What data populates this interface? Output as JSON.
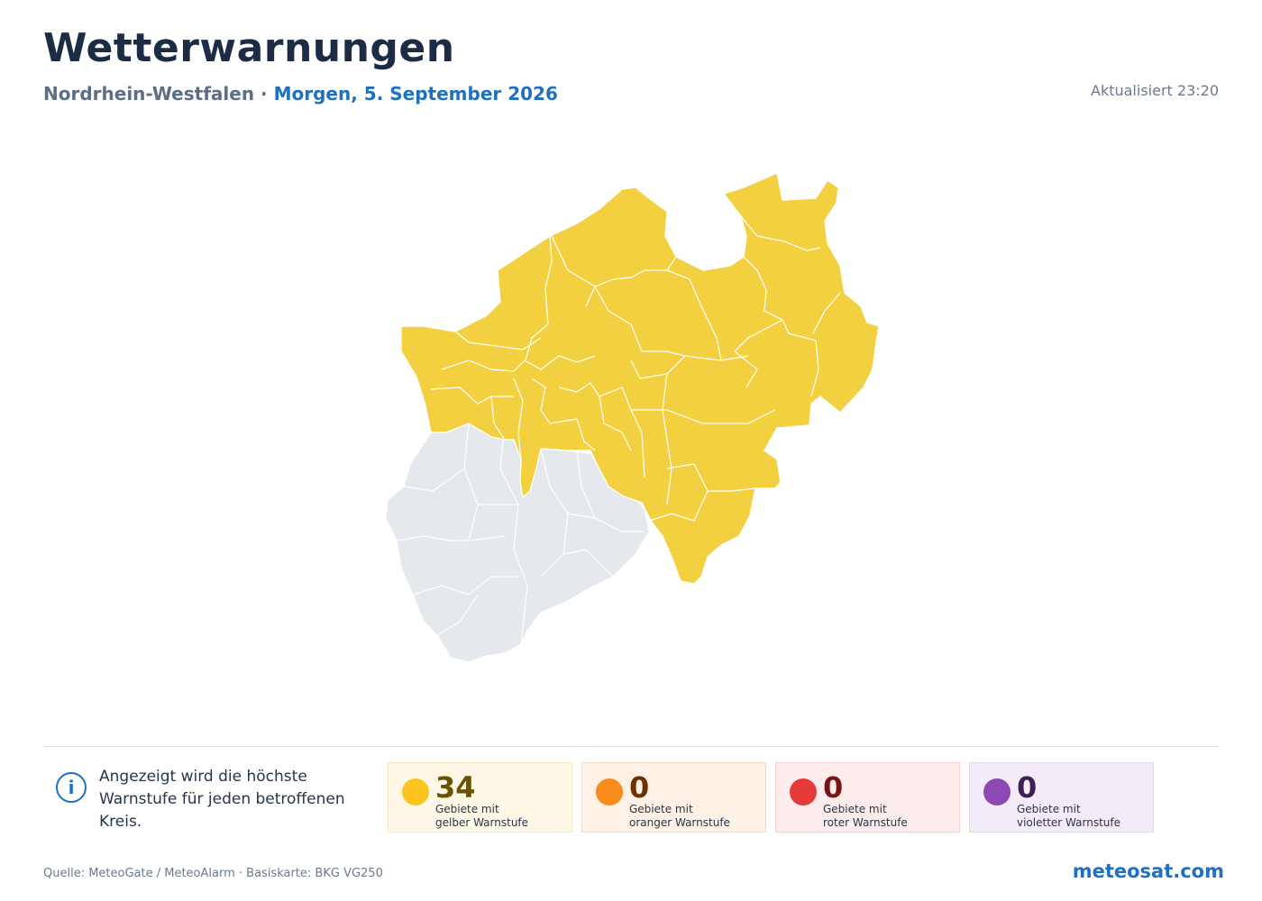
{
  "header": {
    "title": "Wetterwarnungen",
    "region": "Nordrhein-Westfalen",
    "separator": "·",
    "date": "Morgen, 5. September 2026",
    "updated": "Aktualisiert 23:20"
  },
  "map": {
    "colors": {
      "warned": "#f3d040",
      "not_warned": "#e5e8ed",
      "border": "#ffffff"
    },
    "warned_region_level": "gelb"
  },
  "info": {
    "icon": "info-icon",
    "text": "Angezeigt wird die höchste Warnstufe für jeden betroffenen Kreis."
  },
  "legend": [
    {
      "count": "34",
      "label": "Gebiete mit",
      "label2": "gelber Warnstufe",
      "dot": "#fbc41e",
      "num_color": "#6a5200",
      "bg": "#fff8e6",
      "border": "#f4e7c2"
    },
    {
      "count": "0",
      "label": "Gebiete mit",
      "label2": "oranger Warnstufe",
      "dot": "#f98b1c",
      "num_color": "#6e3200",
      "bg": "#fff1e6",
      "border": "#f5dcc8"
    },
    {
      "count": "0",
      "label": "Gebiete mit",
      "label2": "roter Warnstufe",
      "dot": "#e63a3a",
      "num_color": "#7a1414",
      "bg": "#fdecec",
      "border": "#f3d3d3"
    },
    {
      "count": "0",
      "label": "Gebiete mit",
      "label2": "violetter Warnstufe",
      "dot": "#8e48b2",
      "num_color": "#3e1f54",
      "bg": "#f3ebf8",
      "border": "#e3d6ec"
    }
  ],
  "footer": {
    "source": "Quelle: MeteoGate / MeteoAlarm · Basiskarte: BKG VG250",
    "brand": "meteosat.com"
  }
}
